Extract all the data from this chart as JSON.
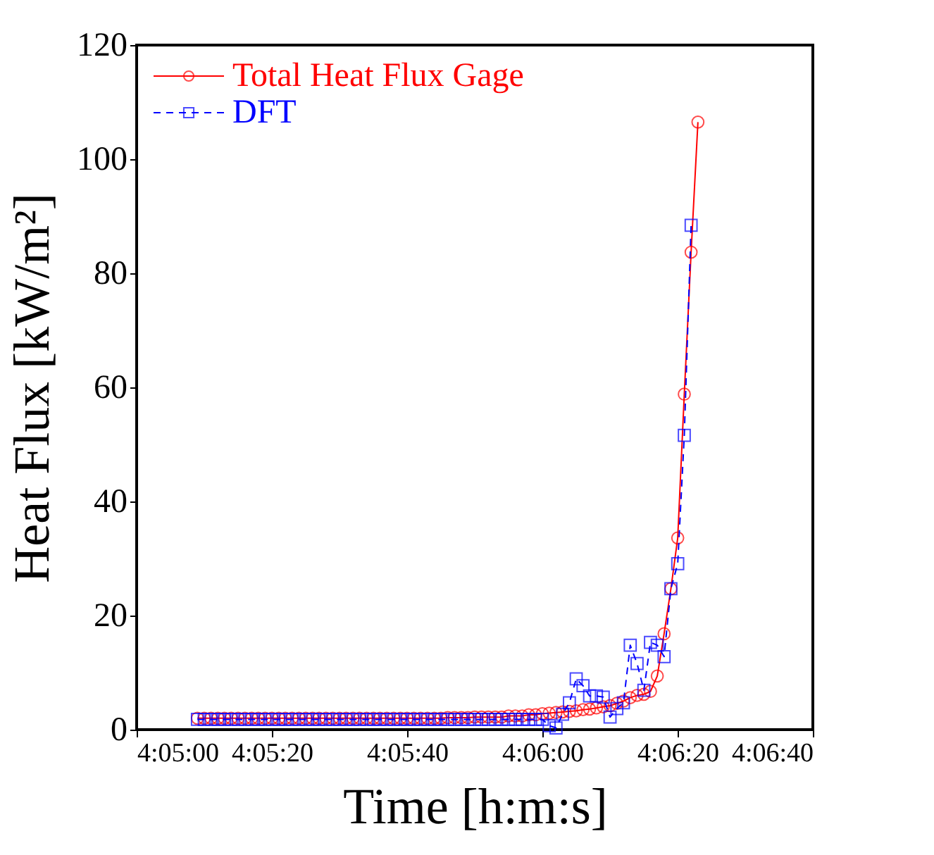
{
  "chart_data": {
    "type": "line",
    "xlabel": "Time [h:m:s]",
    "ylabel": "Heat Flux [kW/m²]",
    "xlim": [
      4.083333,
      4.111111
    ],
    "xticks": [
      {
        "value": 4.083333,
        "label": "4:05:00"
      },
      {
        "value": 4.088889,
        "label": "4:05:20"
      },
      {
        "value": 4.094444,
        "label": "4:05:40"
      },
      {
        "value": 4.1,
        "label": "4:06:00"
      },
      {
        "value": 4.105556,
        "label": "4:06:20"
      },
      {
        "value": 4.111111,
        "label": "4:06:40"
      }
    ],
    "ylim": [
      0,
      120
    ],
    "yticks": [
      0,
      20,
      40,
      60,
      80,
      100,
      120
    ],
    "grid": false,
    "legend": "top left",
    "series": [
      {
        "name": "Total Heat Flux Gage",
        "color": "#ff0000",
        "marker": "circle",
        "line_style": "solid",
        "x": [
          4.08583,
          4.08611,
          4.08639,
          4.08667,
          4.08694,
          4.08722,
          4.0875,
          4.08778,
          4.08806,
          4.08833,
          4.08861,
          4.08889,
          4.08917,
          4.08944,
          4.08972,
          4.09,
          4.09028,
          4.09056,
          4.09083,
          4.09111,
          4.09139,
          4.09167,
          4.09194,
          4.09222,
          4.0925,
          4.09278,
          4.09306,
          4.09333,
          4.09361,
          4.09389,
          4.09417,
          4.09444,
          4.09472,
          4.095,
          4.09528,
          4.09556,
          4.09583,
          4.09611,
          4.09639,
          4.09667,
          4.09694,
          4.09722,
          4.0975,
          4.09778,
          4.09806,
          4.09833,
          4.09861,
          4.09889,
          4.09917,
          4.09944,
          4.09972,
          4.1,
          4.10028,
          4.10056,
          4.10083,
          4.10111,
          4.10139,
          4.10167,
          4.10194,
          4.10222,
          4.1025,
          4.10278,
          4.10306,
          4.10333,
          4.10361,
          4.10389,
          4.10417,
          4.10444,
          4.10472,
          4.105,
          4.10528,
          4.10556,
          4.10583,
          4.10611,
          4.10639
        ],
        "values": [
          2.0,
          2.0,
          2.0,
          2.0,
          2.0,
          2.0,
          2.0,
          2.0,
          2.0,
          2.0,
          2.0,
          2.0,
          2.0,
          2.0,
          2.0,
          2.0,
          2.0,
          2.0,
          2.0,
          2.0,
          2.0,
          2.0,
          2.0,
          2.0,
          2.0,
          2.0,
          2.0,
          2.0,
          2.0,
          2.0,
          2.0,
          2.0,
          2.0,
          2.0,
          2.0,
          2.0,
          2.0,
          2.1,
          2.1,
          2.1,
          2.1,
          2.2,
          2.2,
          2.2,
          2.2,
          2.2,
          2.4,
          2.4,
          2.4,
          2.6,
          2.6,
          2.8,
          2.9,
          3.0,
          3.1,
          3.2,
          3.3,
          3.5,
          3.6,
          3.8,
          4.0,
          4.2,
          4.6,
          5.0,
          5.6,
          6.0,
          6.2,
          6.7,
          9.4,
          16.8,
          24.7,
          33.6,
          58.8,
          83.7,
          106.5
        ]
      },
      {
        "name": "DFT",
        "color": "#0000ff",
        "marker": "square",
        "line_style": "dashed",
        "x": [
          4.08583,
          4.08611,
          4.08639,
          4.08667,
          4.08694,
          4.08722,
          4.0875,
          4.08778,
          4.08806,
          4.08833,
          4.08861,
          4.08889,
          4.08917,
          4.08944,
          4.08972,
          4.09,
          4.09028,
          4.09056,
          4.09083,
          4.09111,
          4.09139,
          4.09167,
          4.09194,
          4.09222,
          4.0925,
          4.09278,
          4.09306,
          4.09333,
          4.09361,
          4.09389,
          4.09417,
          4.09444,
          4.09472,
          4.095,
          4.09528,
          4.09556,
          4.09583,
          4.09611,
          4.09639,
          4.09667,
          4.09694,
          4.09722,
          4.0975,
          4.09778,
          4.09806,
          4.09833,
          4.09861,
          4.09889,
          4.09917,
          4.09944,
          4.09972,
          4.1,
          4.10028,
          4.10056,
          4.10083,
          4.10111,
          4.10139,
          4.10167,
          4.10194,
          4.10222,
          4.1025,
          4.10278,
          4.10306,
          4.10333,
          4.10361,
          4.10389,
          4.10417,
          4.10444,
          4.10472,
          4.105,
          4.10528,
          4.10556,
          4.10583,
          4.10611
        ],
        "values": [
          1.8,
          1.8,
          1.8,
          1.8,
          1.8,
          1.8,
          1.8,
          1.8,
          1.8,
          1.8,
          1.8,
          1.8,
          1.8,
          1.8,
          1.8,
          1.8,
          1.8,
          1.8,
          1.8,
          1.8,
          1.8,
          1.8,
          1.8,
          1.8,
          1.8,
          1.8,
          1.8,
          1.8,
          1.8,
          1.8,
          1.8,
          1.8,
          1.8,
          1.8,
          1.8,
          1.8,
          1.8,
          1.8,
          1.8,
          1.8,
          1.8,
          1.8,
          1.8,
          1.8,
          1.8,
          1.8,
          1.8,
          1.8,
          1.8,
          1.8,
          1.8,
          1.8,
          0.7,
          0.3,
          2.7,
          4.7,
          8.9,
          7.7,
          5.9,
          5.9,
          5.7,
          2.2,
          3.7,
          4.7,
          14.8,
          11.6,
          6.9,
          15.3,
          14.8,
          12.8,
          24.7,
          29.1,
          51.6,
          88.4
        ]
      }
    ]
  }
}
